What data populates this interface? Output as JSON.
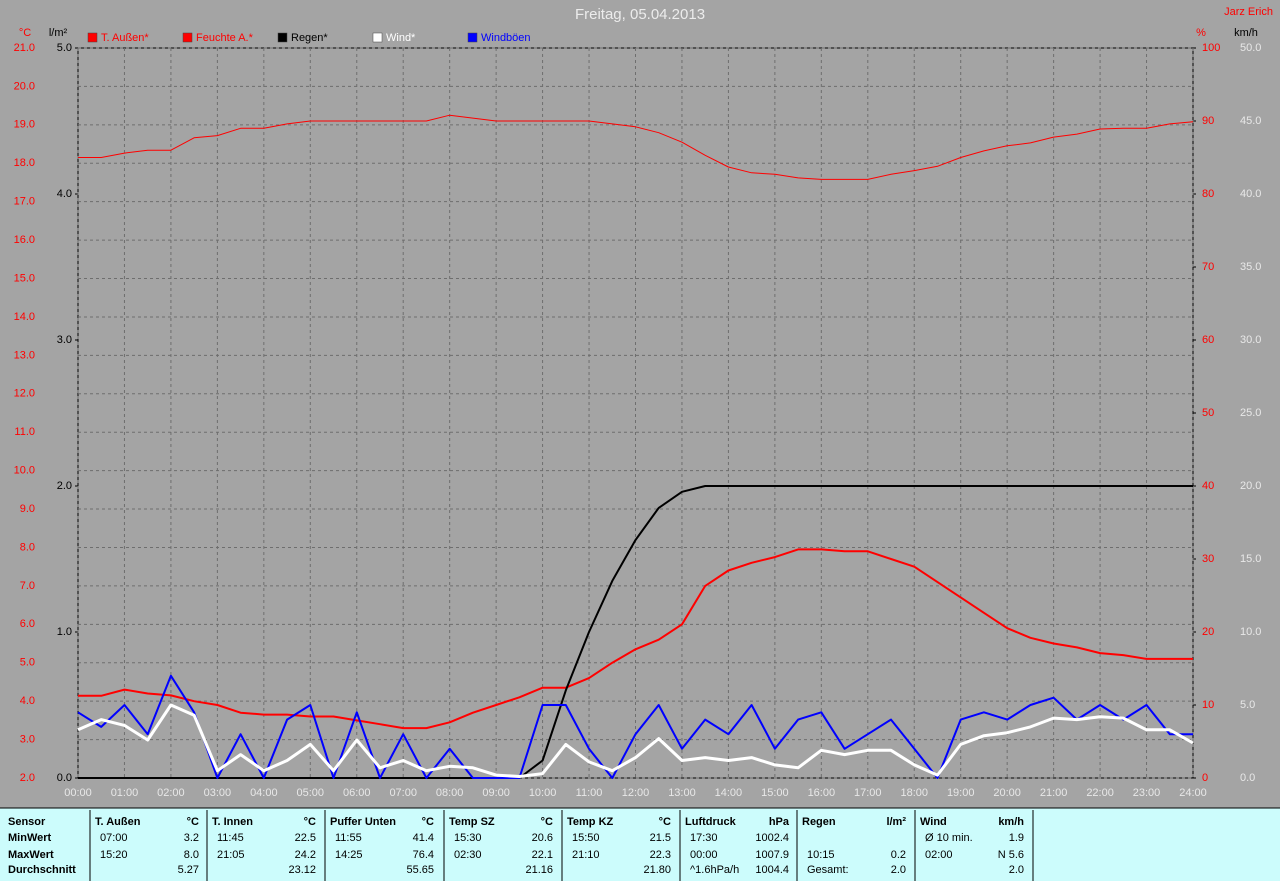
{
  "chart_data": {
    "type": "line",
    "title": "Freitag, 05.04.2013",
    "author": "Jarz Erich",
    "x": [
      0,
      0.5,
      1,
      1.5,
      2,
      2.5,
      3,
      3.5,
      4,
      4.5,
      5,
      5.5,
      6,
      6.5,
      7,
      7.5,
      8,
      8.5,
      9,
      9.5,
      10,
      10.5,
      11,
      11.5,
      12,
      12.5,
      13,
      13.5,
      14,
      14.5,
      15,
      15.5,
      16,
      16.5,
      17,
      17.5,
      18,
      18.5,
      19,
      19.5,
      20,
      20.5,
      21,
      21.5,
      22,
      22.5,
      23,
      23.5,
      24
    ],
    "xlim": [
      0,
      24
    ],
    "xticks": [
      {
        "value": 0,
        "label": "00:00"
      },
      {
        "value": 1,
        "label": "01:00"
      },
      {
        "value": 2,
        "label": "02:00"
      },
      {
        "value": 3,
        "label": "03:00"
      },
      {
        "value": 4,
        "label": "04:00"
      },
      {
        "value": 5,
        "label": "05:00"
      },
      {
        "value": 6,
        "label": "06:00"
      },
      {
        "value": 7,
        "label": "07:00"
      },
      {
        "value": 8,
        "label": "08:00"
      },
      {
        "value": 9,
        "label": "09:00"
      },
      {
        "value": 10,
        "label": "10:00"
      },
      {
        "value": 11,
        "label": "11:00"
      },
      {
        "value": 12,
        "label": "12:00"
      },
      {
        "value": 13,
        "label": "13:00"
      },
      {
        "value": 14,
        "label": "14:00"
      },
      {
        "value": 15,
        "label": "15:00"
      },
      {
        "value": 16,
        "label": "16:00"
      },
      {
        "value": 17,
        "label": "17:00"
      },
      {
        "value": 18,
        "label": "18:00"
      },
      {
        "value": 19,
        "label": "19:00"
      },
      {
        "value": 20,
        "label": "20:00"
      },
      {
        "value": 21,
        "label": "21:00"
      },
      {
        "value": 22,
        "label": "22:00"
      },
      {
        "value": 23,
        "label": "23:00"
      },
      {
        "value": 24,
        "label": "24:00"
      }
    ],
    "ylabel": "°C",
    "ylim": [
      2,
      21
    ],
    "yticks": [
      {
        "value": 2,
        "label": "2.0"
      },
      {
        "value": 3,
        "label": "3.0"
      },
      {
        "value": 4,
        "label": "4.0"
      },
      {
        "value": 5,
        "label": "5.0"
      },
      {
        "value": 6,
        "label": "6.0"
      },
      {
        "value": 7,
        "label": "7.0"
      },
      {
        "value": 8,
        "label": "8.0"
      },
      {
        "value": 9,
        "label": "9.0"
      },
      {
        "value": 10,
        "label": "10.0"
      },
      {
        "value": 11,
        "label": "11.0"
      },
      {
        "value": 12,
        "label": "12.0"
      },
      {
        "value": 13,
        "label": "13.0"
      },
      {
        "value": 14,
        "label": "14.0"
      },
      {
        "value": 15,
        "label": "15.0"
      },
      {
        "value": 16,
        "label": "16.0"
      },
      {
        "value": 17,
        "label": "17.0"
      },
      {
        "value": 18,
        "label": "18.0"
      },
      {
        "value": 19,
        "label": "19.0"
      },
      {
        "value": 20,
        "label": "20.0"
      },
      {
        "value": 21,
        "label": "21.0"
      }
    ],
    "y2label": "l/m²",
    "y2lim": [
      0,
      5
    ],
    "y2ticks": [
      {
        "value": 0,
        "label": "0.0"
      },
      {
        "value": 1,
        "label": "1.0"
      },
      {
        "value": 2,
        "label": "2.0"
      },
      {
        "value": 3,
        "label": "3.0"
      },
      {
        "value": 4,
        "label": "4.0"
      },
      {
        "value": 5,
        "label": "5.0"
      }
    ],
    "y3label": "%",
    "y3lim": [
      0,
      100
    ],
    "y3ticks": [
      0,
      10,
      20,
      30,
      40,
      50,
      60,
      70,
      80,
      90,
      100
    ],
    "y4label": "km/h",
    "y4lim": [
      0,
      50
    ],
    "y4ticks": [
      {
        "value": 0,
        "label": "0.0"
      },
      {
        "value": 5,
        "label": "5.0"
      },
      {
        "value": 10,
        "label": "10.0"
      },
      {
        "value": 15,
        "label": "15.0"
      },
      {
        "value": 20,
        "label": "20.0"
      },
      {
        "value": 25,
        "label": "25.0"
      },
      {
        "value": 30,
        "label": "30.0"
      },
      {
        "value": 35,
        "label": "35.0"
      },
      {
        "value": 40,
        "label": "40.0"
      },
      {
        "value": 45,
        "label": "45.0"
      },
      {
        "value": 50,
        "label": "50.0"
      }
    ],
    "grid": true,
    "series": [
      {
        "name": "T. Außen*",
        "color": "#ff0000",
        "axis": "y",
        "width": 2,
        "values": [
          4.14,
          4.14,
          4.3,
          4.2,
          4.15,
          4.0,
          3.9,
          3.7,
          3.65,
          3.65,
          3.6,
          3.6,
          3.5,
          3.4,
          3.3,
          3.3,
          3.45,
          3.7,
          3.9,
          4.1,
          4.35,
          4.35,
          4.6,
          5.0,
          5.35,
          5.6,
          6.0,
          7.0,
          7.4,
          7.6,
          7.75,
          7.95,
          7.95,
          7.9,
          7.9,
          7.7,
          7.5,
          7.1,
          6.7,
          6.3,
          5.9,
          5.65,
          5.5,
          5.4,
          5.25,
          5.2,
          5.1,
          5.1,
          5.1
        ]
      },
      {
        "name": "Feuchte A.*",
        "color": "#ff0000",
        "axis": "y3",
        "width": 1,
        "values": [
          85,
          85,
          85.6,
          86,
          86,
          87.7,
          88,
          89,
          89,
          89.6,
          90,
          90,
          90,
          90,
          90,
          90,
          90.8,
          90.4,
          90,
          90,
          90,
          90,
          90,
          89.6,
          89.2,
          88.4,
          87.1,
          85.3,
          83.7,
          82.9,
          82.7,
          82.2,
          82,
          82,
          82,
          82.7,
          83.2,
          83.8,
          85,
          85.9,
          86.6,
          87,
          87.8,
          88.2,
          88.9,
          89,
          89,
          89.6,
          89.9
        ]
      },
      {
        "name": "Regen*",
        "color": "#000000",
        "axis": "y2",
        "width": 2,
        "values": [
          0,
          0,
          0,
          0,
          0,
          0,
          0,
          0,
          0,
          0,
          0,
          0,
          0,
          0,
          0,
          0,
          0,
          0,
          0,
          0,
          0.12,
          0.6,
          1.0,
          1.35,
          1.63,
          1.85,
          1.96,
          2.0,
          2.0,
          2.0,
          2.0,
          2.0,
          2.0,
          2.0,
          2.0,
          2.0,
          2.0,
          2.0,
          2.0,
          2.0,
          2.0,
          2.0,
          2.0,
          2.0,
          2.0,
          2.0,
          2.0,
          2.0,
          2.0
        ]
      },
      {
        "name": "Wind*",
        "color": "#ffffff",
        "axis": "y4",
        "width": 3,
        "values": [
          3.3,
          4.0,
          3.6,
          2.6,
          5.0,
          4.3,
          0.5,
          1.6,
          0.5,
          1.2,
          2.3,
          0.5,
          2.6,
          0.7,
          1.2,
          0.5,
          0.8,
          0.7,
          0.2,
          0.1,
          0.3,
          2.3,
          1.1,
          0.5,
          1.4,
          2.7,
          1.2,
          1.4,
          1.2,
          1.4,
          0.9,
          0.7,
          1.9,
          1.6,
          1.9,
          1.9,
          0.9,
          0.2,
          2.3,
          2.9,
          3.1,
          3.5,
          4.1,
          4.0,
          4.2,
          4.1,
          3.3,
          3.3,
          2.4
        ]
      },
      {
        "name": "Windböen",
        "color": "#0000ff",
        "axis": "y4",
        "width": 2,
        "values": [
          4.5,
          3.5,
          5,
          3,
          7,
          4.5,
          0,
          3,
          0,
          4,
          5,
          0,
          4.5,
          0,
          3,
          0,
          2,
          0,
          0,
          0,
          5,
          5,
          2,
          0,
          3,
          5,
          2,
          4,
          3,
          5,
          2,
          4,
          4.5,
          2,
          3,
          4,
          2,
          0,
          4,
          4.5,
          4,
          5,
          5.5,
          4,
          5,
          4,
          5,
          3,
          3
        ]
      }
    ]
  },
  "table": {
    "row_labels": [
      "Sensor",
      "MinWert",
      "MaxWert",
      "Durchschnitt"
    ],
    "columns": [
      {
        "name": "T. Außen",
        "unit": "°C",
        "cells": [
          [
            "07:00",
            "3.2"
          ],
          [
            "15:20",
            "8.0"
          ],
          [
            null,
            "5.27"
          ]
        ]
      },
      {
        "name": "T. Innen",
        "unit": "°C",
        "cells": [
          [
            "11:45",
            "22.5"
          ],
          [
            "21:05",
            "24.2"
          ],
          [
            null,
            "23.12"
          ]
        ]
      },
      {
        "name": "Puffer Unten",
        "unit": "°C",
        "cells": [
          [
            "11:55",
            "41.4"
          ],
          [
            "14:25",
            "76.4"
          ],
          [
            null,
            "55.65"
          ]
        ]
      },
      {
        "name": "Temp SZ",
        "unit": "°C",
        "cells": [
          [
            "15:30",
            "20.6"
          ],
          [
            "02:30",
            "22.1"
          ],
          [
            null,
            "21.16"
          ]
        ]
      },
      {
        "name": "Temp KZ",
        "unit": "°C",
        "cells": [
          [
            "15:50",
            "21.5"
          ],
          [
            "21:10",
            "22.3"
          ],
          [
            null,
            "21.80"
          ]
        ]
      },
      {
        "name": "Luftdruck",
        "unit": "hPa",
        "cells": [
          [
            "17:30",
            "1002.4"
          ],
          [
            "00:00",
            "1007.9"
          ],
          [
            "^1.6hPa/h",
            "1004.4"
          ]
        ]
      },
      {
        "name": "Regen",
        "unit": "l/m²",
        "cells": [
          [
            null,
            null
          ],
          [
            "10:15",
            "0.2"
          ],
          [
            "Gesamt:",
            "2.0"
          ]
        ]
      },
      {
        "name": "Wind",
        "unit": "km/h",
        "cells": [
          [
            "Ø 10 min.",
            "1.9"
          ],
          [
            "02:00",
            "N 5.6"
          ],
          [
            null,
            "2.0"
          ]
        ]
      }
    ]
  }
}
